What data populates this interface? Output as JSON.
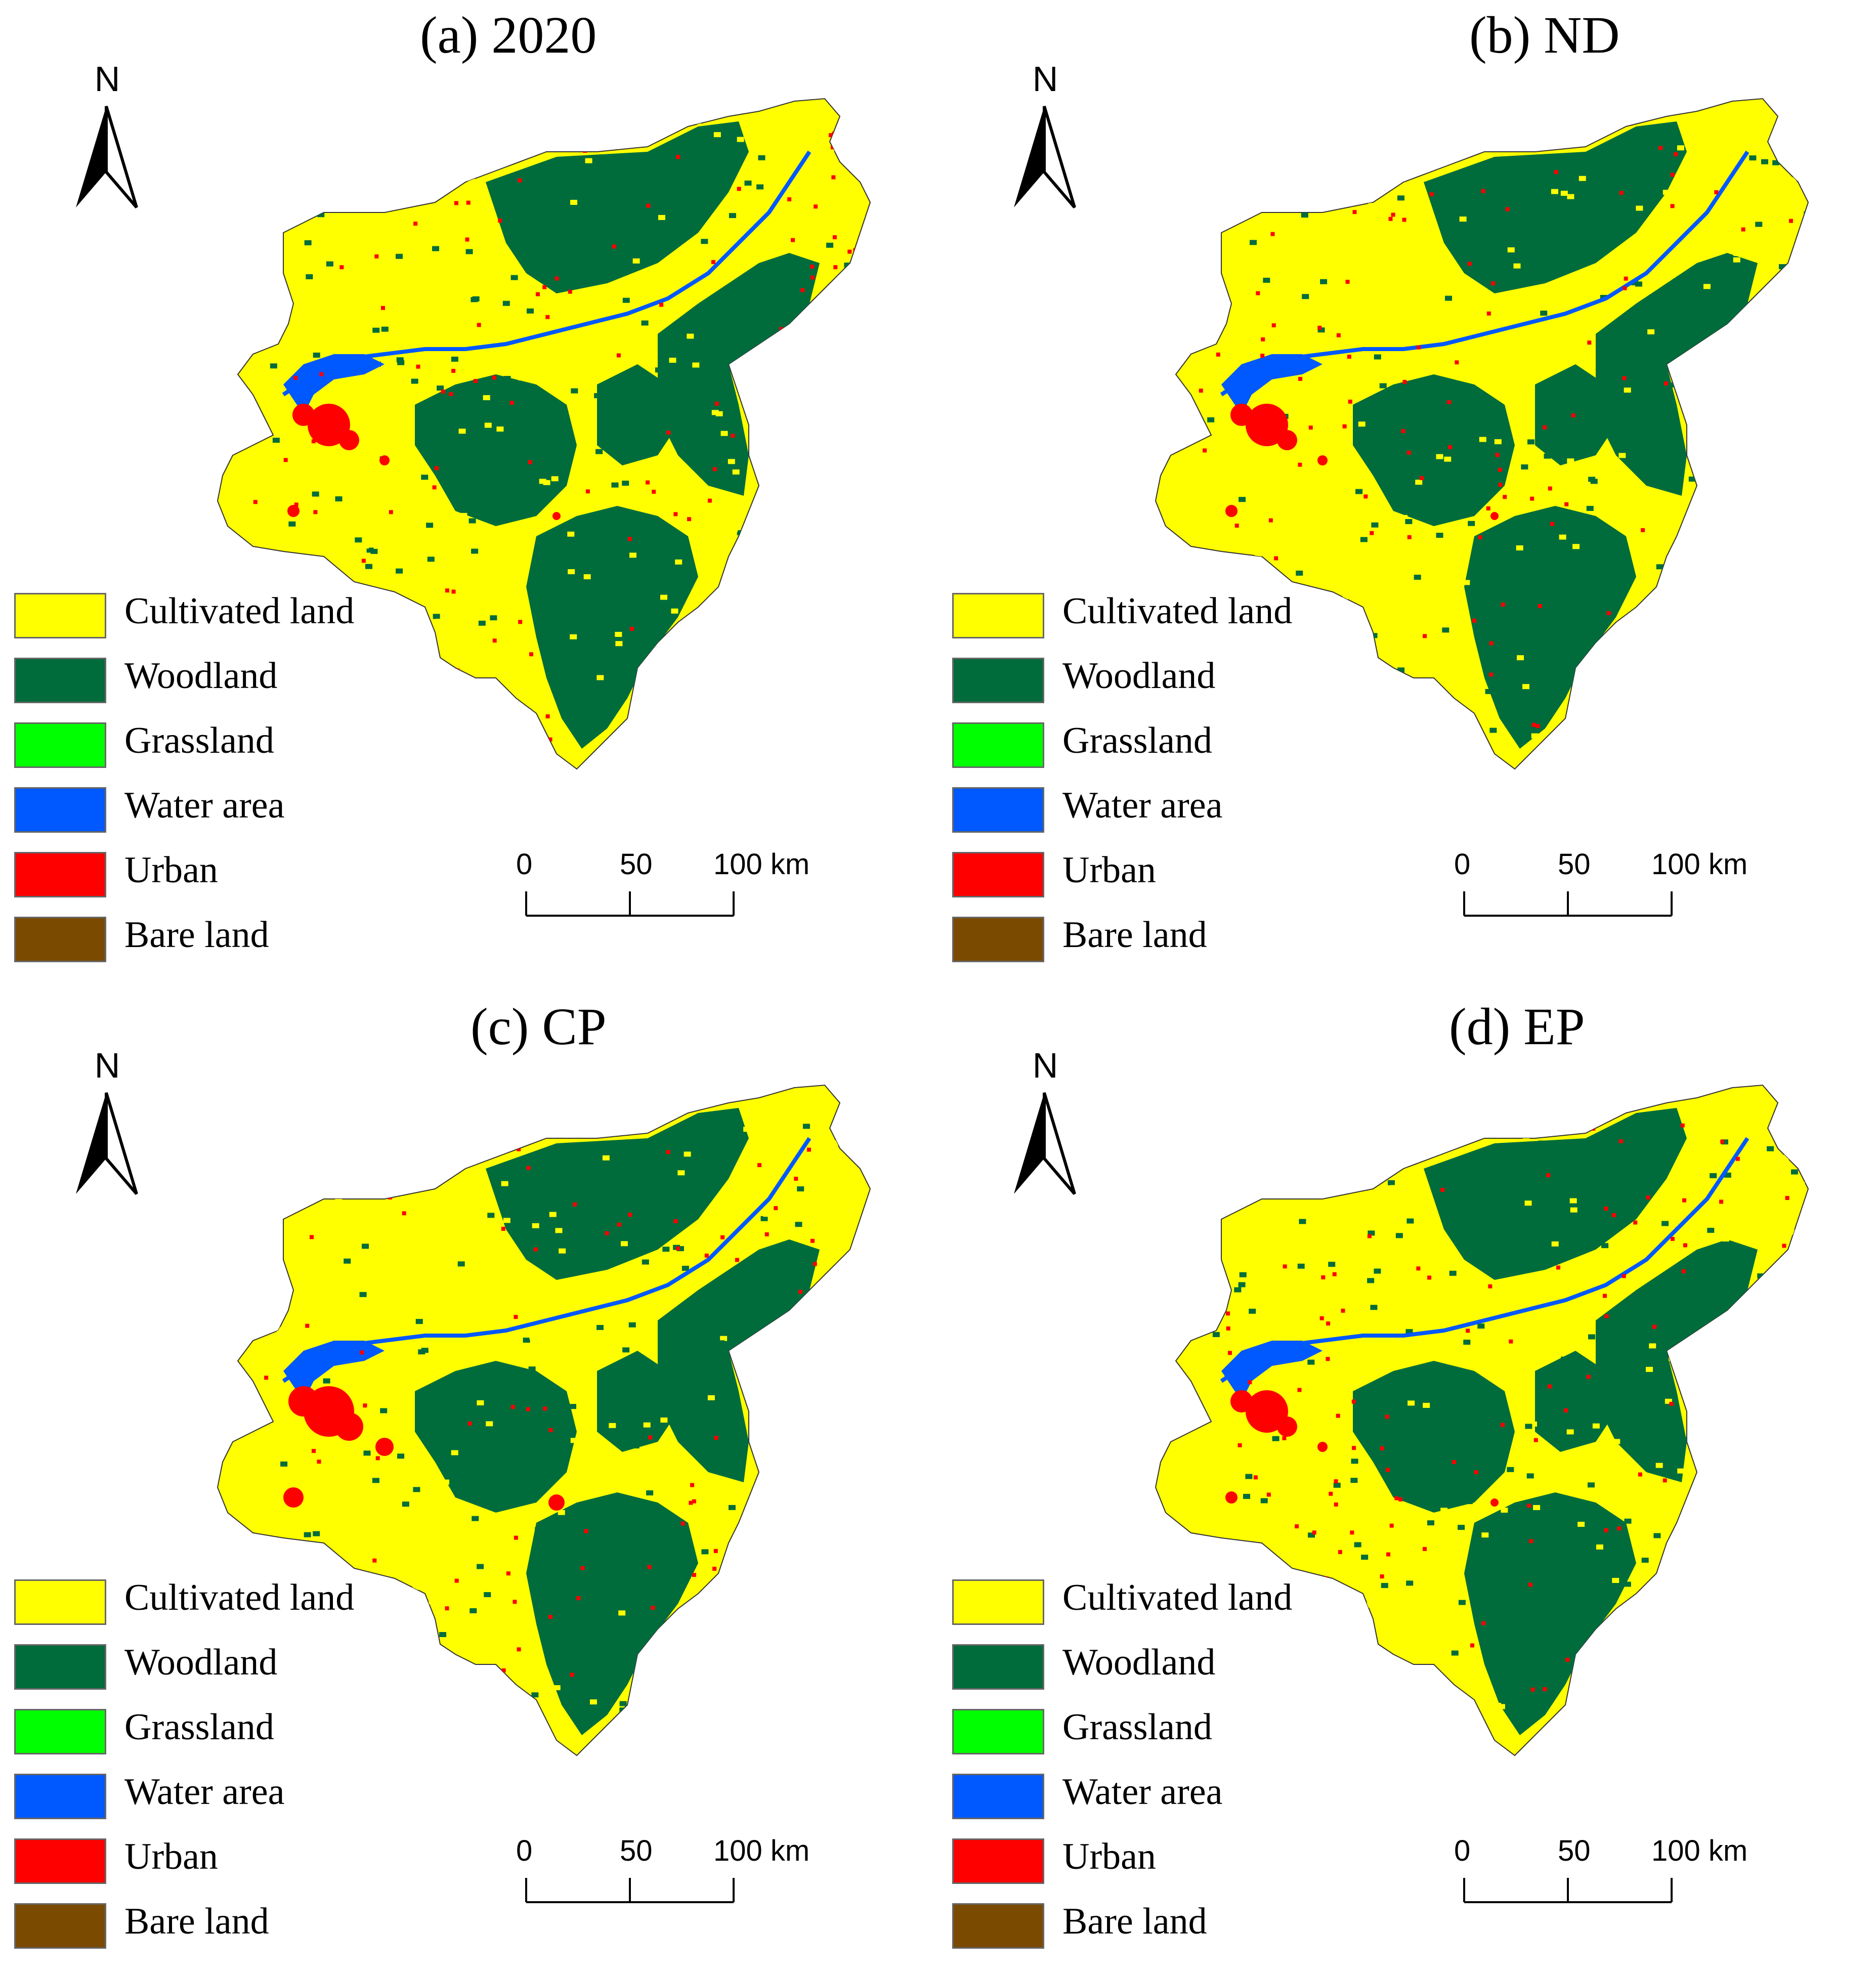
{
  "panels": [
    {
      "title": "(a) 2020"
    },
    {
      "title": "(b) ND"
    },
    {
      "title": "(c) CP"
    },
    {
      "title": "(d) EP"
    }
  ],
  "north_arrow": {
    "label": "N"
  },
  "legend": [
    {
      "label": "Cultivated land",
      "color": "#ffff00"
    },
    {
      "label": "Woodland",
      "color": "#006c3c"
    },
    {
      "label": "Grassland",
      "color": "#00ff00"
    },
    {
      "label": "Water area",
      "color": "#0058ff"
    },
    {
      "label": "Urban",
      "color": "#ff0000"
    },
    {
      "label": "Bare land",
      "color": "#7a4a00"
    }
  ],
  "scale_bar": {
    "ticks": [
      "0",
      "50",
      "100 km"
    ]
  }
}
